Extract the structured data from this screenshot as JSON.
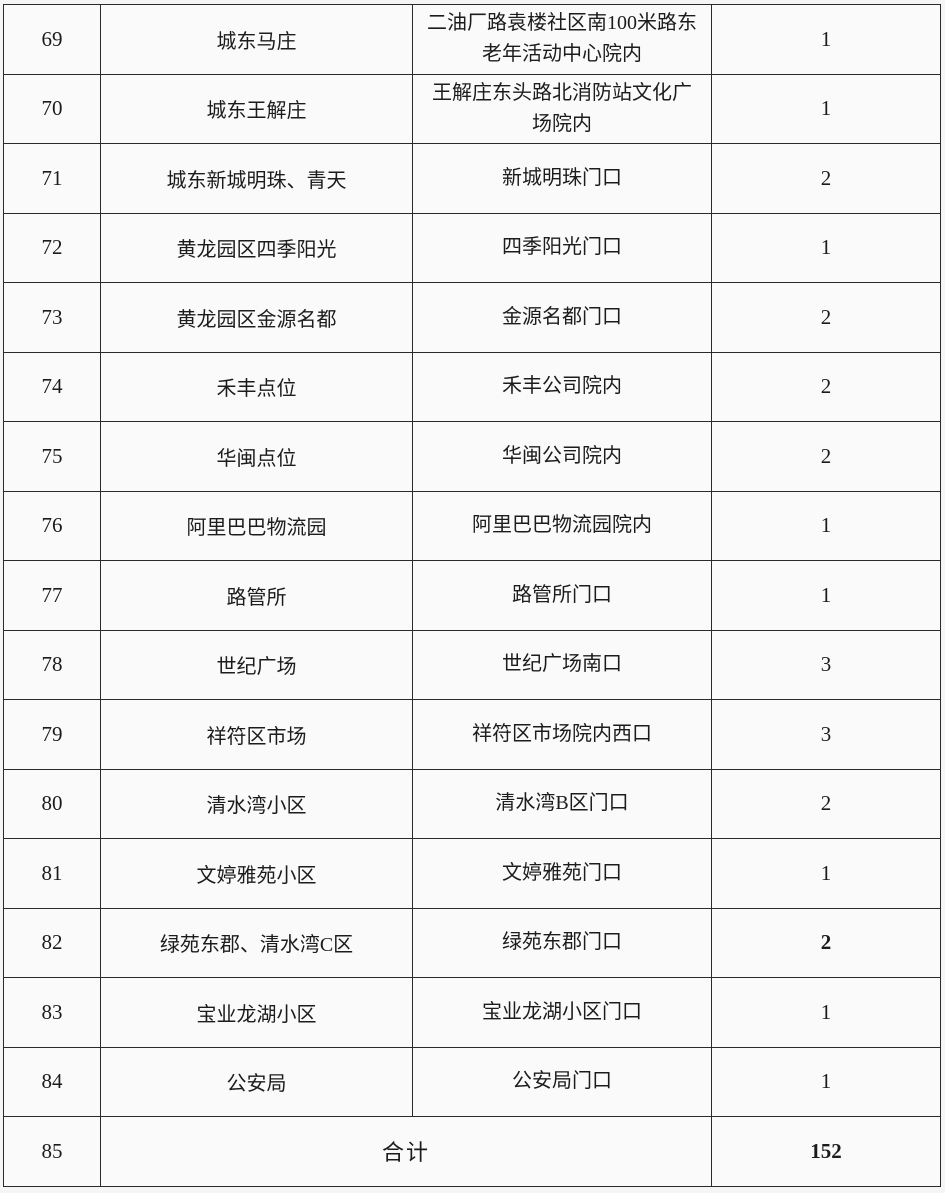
{
  "table": {
    "rows": [
      {
        "no": "69",
        "name": "城东马庄",
        "address": "二油厂路袁楼社区南100米路东老年活动中心院内",
        "count": "1"
      },
      {
        "no": "70",
        "name": "城东王解庄",
        "address": "王解庄东头路北消防站文化广场院内",
        "count": "1"
      },
      {
        "no": "71",
        "name": "城东新城明珠、青天",
        "address": "新城明珠门口",
        "count": "2"
      },
      {
        "no": "72",
        "name": "黄龙园区四季阳光",
        "address": "四季阳光门口",
        "count": "1"
      },
      {
        "no": "73",
        "name": "黄龙园区金源名都",
        "address": "金源名都门口",
        "count": "2"
      },
      {
        "no": "74",
        "name": "禾丰点位",
        "address": "禾丰公司院内",
        "count": "2"
      },
      {
        "no": "75",
        "name": "华闽点位",
        "address": "华闽公司院内",
        "count": "2"
      },
      {
        "no": "76",
        "name": "阿里巴巴物流园",
        "address": "阿里巴巴物流园院内",
        "count": "1"
      },
      {
        "no": "77",
        "name": "路管所",
        "address": "路管所门口",
        "count": "1"
      },
      {
        "no": "78",
        "name": "世纪广场",
        "address": "世纪广场南口",
        "count": "3"
      },
      {
        "no": "79",
        "name": "祥符区市场",
        "address": "祥符区市场院内西口",
        "count": "3"
      },
      {
        "no": "80",
        "name": "清水湾小区",
        "address": "清水湾B区门口",
        "count": "2"
      },
      {
        "no": "81",
        "name": "文婷雅苑小区",
        "address": "文婷雅苑门口",
        "count": "1"
      },
      {
        "no": "82",
        "name": "绿苑东郡、清水湾C区",
        "address": "绿苑东郡门口",
        "count": "2"
      },
      {
        "no": "83",
        "name": "宝业龙湖小区",
        "address": "宝业龙湖小区门口",
        "count": "1"
      },
      {
        "no": "84",
        "name": "公安局",
        "address": "公安局门口",
        "count": "1"
      }
    ],
    "total_row": {
      "no": "85",
      "label": "合计",
      "count": "152"
    }
  },
  "colors": {
    "border": "#2a2a2a",
    "page_background": "#f5f5f5",
    "cell_background": "#fafafa",
    "text": "#1c1c1c"
  }
}
